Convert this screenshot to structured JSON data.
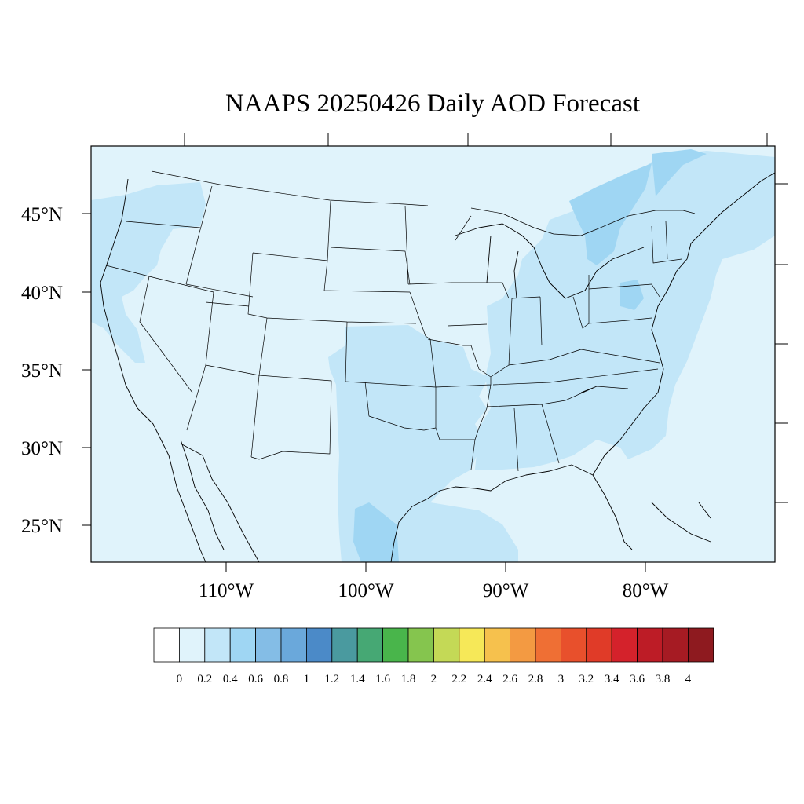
{
  "title": "NAAPS 20250426 Daily AOD Forecast",
  "map": {
    "variable": "Aerosol Optical Depth",
    "region": "Continental United States",
    "lon_range": [
      -119,
      -71
    ],
    "lat_range": [
      22.5,
      49.5
    ],
    "lat_ticks": [
      "45°N",
      "40°N",
      "35°N",
      "30°N",
      "25°N"
    ],
    "lon_ticks": [
      "110°W",
      "100°W",
      "90°W",
      "80°W"
    ],
    "background_aod_level": "0.2-0.4",
    "elevated_regions": [
      {
        "name": "Pacific Northwest coast",
        "aod_level": "0.4-0.6"
      },
      {
        "name": "California coast",
        "aod_level": "0.4-0.6"
      },
      {
        "name": "Southern Plains and Texas",
        "aod_level": "0.4-0.6"
      },
      {
        "name": "South Texas / Gulf coast",
        "aod_level": "0.6-0.8"
      },
      {
        "name": "Great Lakes and Ohio Valley",
        "aod_level": "0.4-0.6"
      },
      {
        "name": "Southeast US",
        "aod_level": "0.4-0.6"
      },
      {
        "name": "Atlantic coast",
        "aod_level": "0.4-0.6"
      },
      {
        "name": "Northeast / Quebec plume",
        "aod_level": "0.6-0.8"
      }
    ]
  },
  "colorbar": {
    "colors": [
      "#ffffff",
      "#e0f3fb",
      "#c2e6f8",
      "#9fd6f3",
      "#84bde6",
      "#6aa8db",
      "#4b8ac8",
      "#4a9a9f",
      "#46a874",
      "#49b54b",
      "#85c54e",
      "#c4d956",
      "#f6e858",
      "#f6c14d",
      "#f39a42",
      "#ef6f34",
      "#e8502c",
      "#e03b28",
      "#d4222b",
      "#bd1c26",
      "#a61b23",
      "#8e1a1f"
    ],
    "labels": [
      "0",
      "0.2",
      "0.4",
      "0.6",
      "0.8",
      "1",
      "1.2",
      "1.4",
      "1.6",
      "1.8",
      "2",
      "2.2",
      "2.4",
      "2.6",
      "2.8",
      "3",
      "3.2",
      "3.4",
      "3.6",
      "3.8",
      "4"
    ]
  }
}
